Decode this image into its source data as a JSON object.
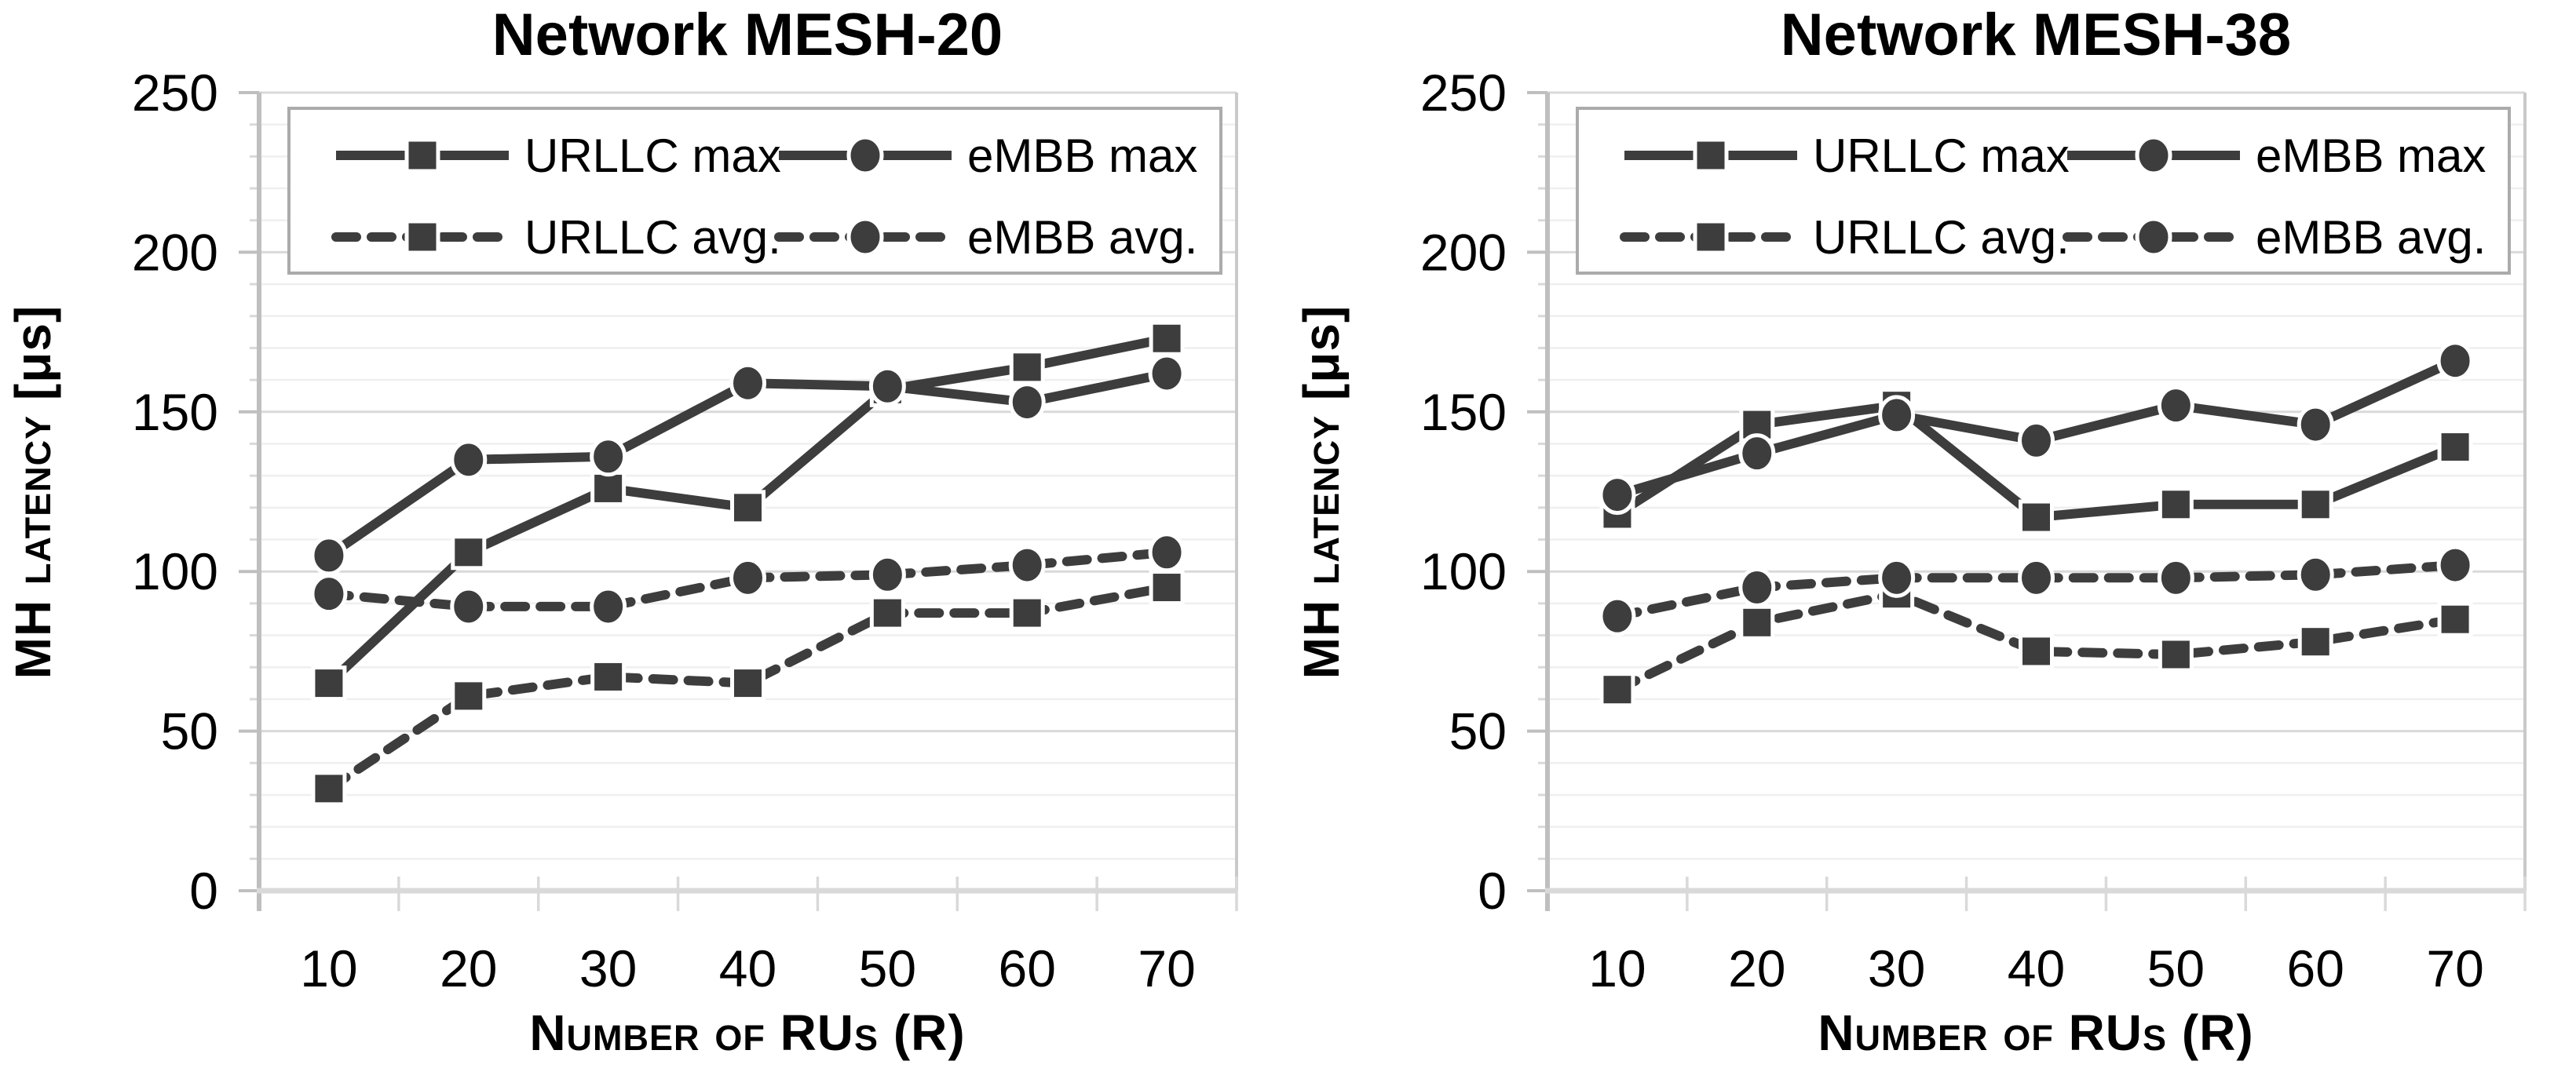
{
  "style": {
    "series_color": "#3d3d3d",
    "grid_minor_color": "#efefef",
    "grid_major_color": "#d9d9d9",
    "axis_color": "#bfbfbf",
    "plot_border_color": "#c9c9c9",
    "legend_border_color": "#ababab",
    "text_color": "#000000",
    "background": "#ffffff"
  },
  "chart_data": [
    {
      "type": "line",
      "title": "Network MESH-20",
      "xlabel": "Number of RUs (R)",
      "ylabel": "MH latency [μs]",
      "ylabel_parts": {
        "prefix": "MH ",
        "smallcaps": "latency",
        "suffix": " [μs]"
      },
      "x": [
        10,
        20,
        30,
        40,
        50,
        60,
        70
      ],
      "x_tick_labels": [
        "10",
        "20",
        "30",
        "40",
        "50",
        "60",
        "70"
      ],
      "ylim": [
        0,
        250
      ],
      "y_major_ticks": [
        0,
        50,
        100,
        150,
        200,
        250
      ],
      "y_minor_step": 10,
      "grid": "horizontal minor + major",
      "legend_position": "top inside, 2 columns",
      "legend_grid": [
        [
          "URLLC max",
          "eMBB max"
        ],
        [
          "URLLC avg.",
          "eMBB avg."
        ]
      ],
      "series": [
        {
          "name": "URLLC max",
          "line": "solid",
          "marker": "square",
          "values": [
            65,
            106,
            126,
            120,
            157,
            164,
            173
          ]
        },
        {
          "name": "eMBB max",
          "line": "solid",
          "marker": "circle",
          "values": [
            105,
            135,
            136,
            159,
            158,
            153,
            162
          ]
        },
        {
          "name": "URLLC avg.",
          "line": "dashed",
          "marker": "square",
          "values": [
            32,
            61,
            67,
            65,
            87,
            87,
            95
          ]
        },
        {
          "name": "eMBB avg.",
          "line": "dashed",
          "marker": "circle",
          "values": [
            93,
            89,
            89,
            98,
            99,
            102,
            106
          ]
        }
      ]
    },
    {
      "type": "line",
      "title": "Network MESH-38",
      "xlabel": "Number of RUs (R)",
      "ylabel": "MH latency [μs]",
      "ylabel_parts": {
        "prefix": "MH ",
        "smallcaps": "latency",
        "suffix": " [μs]"
      },
      "x": [
        10,
        20,
        30,
        40,
        50,
        60,
        70
      ],
      "x_tick_labels": [
        "10",
        "20",
        "30",
        "40",
        "50",
        "60",
        "70"
      ],
      "ylim": [
        0,
        250
      ],
      "y_major_ticks": [
        0,
        50,
        100,
        150,
        200,
        250
      ],
      "y_minor_step": 10,
      "grid": "horizontal minor + major",
      "legend_position": "top inside, 2 columns",
      "legend_grid": [
        [
          "URLLC max",
          "eMBB max"
        ],
        [
          "URLLC avg.",
          "eMBB avg."
        ]
      ],
      "series": [
        {
          "name": "URLLC max",
          "line": "solid",
          "marker": "square",
          "values": [
            118,
            146,
            152,
            117,
            121,
            121,
            139
          ]
        },
        {
          "name": "eMBB max",
          "line": "solid",
          "marker": "circle",
          "values": [
            124,
            137,
            149,
            141,
            152,
            146,
            166
          ]
        },
        {
          "name": "URLLC avg.",
          "line": "dashed",
          "marker": "square",
          "values": [
            63,
            84,
            93,
            75,
            74,
            78,
            85
          ]
        },
        {
          "name": "eMBB avg.",
          "line": "dashed",
          "marker": "circle",
          "values": [
            86,
            95,
            98,
            98,
            98,
            99,
            102
          ]
        }
      ]
    }
  ]
}
